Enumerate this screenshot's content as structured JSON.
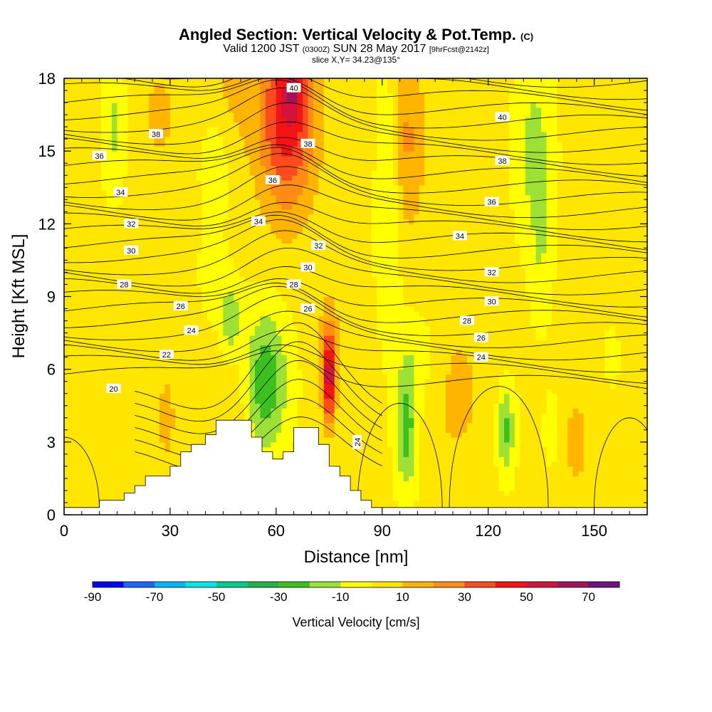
{
  "header": {
    "title": "Angled Section: Vertical Velocity & Pot.Temp.",
    "title_mark": "(C)",
    "valid_pre": "Valid 1200 JST",
    "valid_utc": "(0300Z)",
    "valid_mid": "SUN 28 May 2017",
    "valid_fcst": "[9hrFcst@2142z]",
    "slice": "slice X,Y= 34.23@135°"
  },
  "chart_data": {
    "type": "heatmap",
    "xlabel": "Distance [nm]",
    "ylabel": "Height [Kft MSL]",
    "xlim": [
      0,
      165
    ],
    "ylim": [
      0,
      18
    ],
    "xticks": [
      0,
      30,
      60,
      90,
      120,
      150
    ],
    "yticks": [
      0,
      3,
      6,
      9,
      12,
      15,
      18
    ],
    "colorbar": {
      "title": "Vertical Velocity [cm/s]",
      "bounds": [
        -90,
        -80,
        -70,
        -60,
        -50,
        -40,
        -30,
        -20,
        -10,
        0,
        10,
        20,
        30,
        40,
        50,
        60,
        70,
        80
      ],
      "labels": [
        "-90",
        "-70",
        "-50",
        "-30",
        "-10",
        "10",
        "30",
        "50",
        "70"
      ],
      "colors": [
        "#0000f0",
        "#1e64ff",
        "#00b4ff",
        "#00e6e6",
        "#00cc88",
        "#22b24c",
        "#3cc01e",
        "#9de036",
        "#ffff00",
        "#ffe600",
        "#ffb400",
        "#ff8c14",
        "#ff4b1e",
        "#f51414",
        "#d2143c",
        "#a0145a",
        "#6e147d"
      ]
    },
    "terrain": [
      [
        0,
        0.3
      ],
      [
        10,
        0.3
      ],
      [
        10,
        0.6
      ],
      [
        17,
        0.6
      ],
      [
        17,
        0.9
      ],
      [
        20,
        0.9
      ],
      [
        20,
        1.2
      ],
      [
        23,
        1.2
      ],
      [
        23,
        1.6
      ],
      [
        30,
        1.6
      ],
      [
        30,
        2.0
      ],
      [
        33,
        2.0
      ],
      [
        33,
        2.6
      ],
      [
        36,
        2.6
      ],
      [
        36,
        2.9
      ],
      [
        40,
        2.9
      ],
      [
        40,
        3.3
      ],
      [
        43,
        3.3
      ],
      [
        43,
        3.9
      ],
      [
        53,
        3.9
      ],
      [
        53,
        3.2
      ],
      [
        56,
        3.2
      ],
      [
        56,
        2.6
      ],
      [
        59,
        2.6
      ],
      [
        59,
        2.3
      ],
      [
        62,
        2.3
      ],
      [
        62,
        2.6
      ],
      [
        65,
        2.6
      ],
      [
        65,
        3.6
      ],
      [
        72,
        3.6
      ],
      [
        72,
        2.9
      ],
      [
        75,
        2.9
      ],
      [
        75,
        2.0
      ],
      [
        78,
        2.0
      ],
      [
        78,
        1.6
      ],
      [
        81,
        1.6
      ],
      [
        81,
        1.0
      ],
      [
        84,
        1.0
      ],
      [
        84,
        0.6
      ],
      [
        87,
        0.6
      ],
      [
        87,
        0.3
      ],
      [
        165,
        0.3
      ]
    ],
    "theta_labels": [
      {
        "text": "40",
        "x": 65,
        "y": 17.6
      },
      {
        "text": "38",
        "x": 26,
        "y": 15.7
      },
      {
        "text": "36",
        "x": 10,
        "y": 14.8
      },
      {
        "text": "34",
        "x": 16,
        "y": 13.3
      },
      {
        "text": "32",
        "x": 19,
        "y": 12.0
      },
      {
        "text": "30",
        "x": 19,
        "y": 10.9
      },
      {
        "text": "28",
        "x": 17,
        "y": 9.5
      },
      {
        "text": "26",
        "x": 33,
        "y": 8.6
      },
      {
        "text": "24",
        "x": 36,
        "y": 7.6
      },
      {
        "text": "22",
        "x": 29,
        "y": 6.6
      },
      {
        "text": "20",
        "x": 14,
        "y": 5.2
      },
      {
        "text": "38",
        "x": 69,
        "y": 15.3
      },
      {
        "text": "36",
        "x": 59,
        "y": 13.8
      },
      {
        "text": "34",
        "x": 55,
        "y": 12.1
      },
      {
        "text": "32",
        "x": 72,
        "y": 11.1
      },
      {
        "text": "30",
        "x": 69,
        "y": 10.2
      },
      {
        "text": "28",
        "x": 65,
        "y": 9.5
      },
      {
        "text": "26",
        "x": 69,
        "y": 8.5
      },
      {
        "text": "24",
        "x": 83,
        "y": 3.0
      },
      {
        "text": "40",
        "x": 124,
        "y": 16.4
      },
      {
        "text": "38",
        "x": 124,
        "y": 14.6
      },
      {
        "text": "36",
        "x": 121,
        "y": 12.9
      },
      {
        "text": "34",
        "x": 112,
        "y": 11.5
      },
      {
        "text": "32",
        "x": 121,
        "y": 10.0
      },
      {
        "text": "30",
        "x": 121,
        "y": 8.8
      },
      {
        "text": "28",
        "x": 114,
        "y": 8.0
      },
      {
        "text": "26",
        "x": 118,
        "y": 7.3
      },
      {
        "text": "24",
        "x": 118,
        "y": 6.5
      }
    ]
  }
}
